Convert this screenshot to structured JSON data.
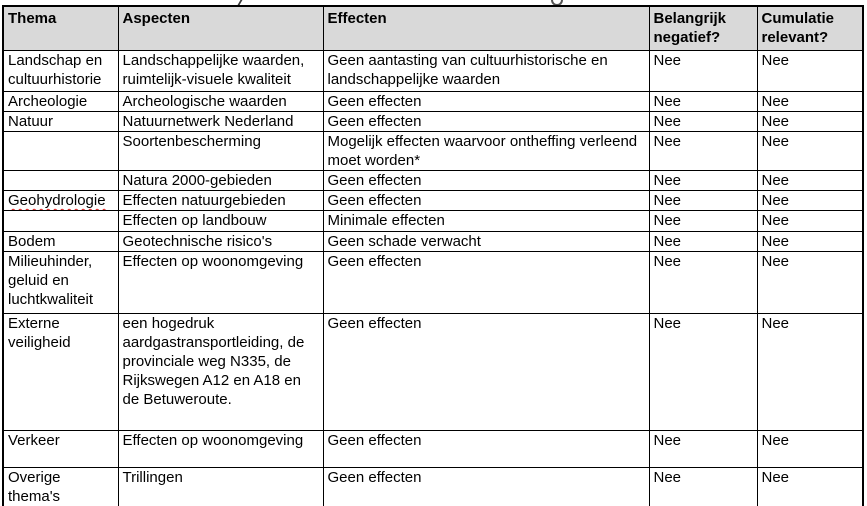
{
  "colors": {
    "page_background": "#ffffff",
    "header_background": "#d9d9d9",
    "border": "#000000",
    "text": "#000000",
    "spellcheck_underline": "#dd2222"
  },
  "table": {
    "header": {
      "thema": "Thema",
      "aspecten": "Aspecten",
      "effecten": "Effecten",
      "belangrijk": "Belangrijk negatief?",
      "cumulatie": "Cumulatie relevant?"
    },
    "rows": [
      {
        "thema": "Landschap en cultuurhistorie",
        "aspecten": "Landschappelijke waarden, ruimtelijk-visuele kwaliteit",
        "effecten": "Geen aantasting van cultuurhistorische en landschappelijke waarden",
        "belangrijk": "Nee",
        "cumulatie": "Nee"
      },
      {
        "thema": "Archeologie",
        "aspecten": "Archeologische waarden",
        "effecten": "Geen effecten",
        "belangrijk": "Nee",
        "cumulatie": "Nee"
      },
      {
        "thema": "Natuur",
        "aspecten": "Natuurnetwerk Nederland",
        "effecten": "Geen effecten",
        "belangrijk": "Nee",
        "cumulatie": "Nee"
      },
      {
        "thema": "",
        "aspecten": "Soortenbescherming",
        "effecten": "Mogelijk effecten waarvoor ontheffing verleend moet worden*",
        "belangrijk": "Nee",
        "cumulatie": "Nee"
      },
      {
        "thema": "",
        "aspecten": "Natura 2000-gebieden",
        "effecten": "Geen effecten",
        "belangrijk": "Nee",
        "cumulatie": "Nee"
      },
      {
        "thema": "Geohydrologie",
        "spellcheck_underline": true,
        "aspecten": "Effecten natuurgebieden",
        "effecten": "Geen effecten",
        "belangrijk": "Nee",
        "cumulatie": "Nee"
      },
      {
        "thema": "",
        "aspecten": "Effecten op landbouw",
        "effecten": "Minimale effecten",
        "belangrijk": "Nee",
        "cumulatie": "Nee"
      },
      {
        "thema": "Bodem",
        "aspecten": "Geotechnische risico's",
        "effecten": "Geen schade verwacht",
        "belangrijk": "Nee",
        "cumulatie": "Nee"
      },
      {
        "thema": "Milieuhinder, geluid en luchtkwaliteit",
        "aspecten": "Effecten op woonomgeving",
        "effecten": "Geen effecten",
        "belangrijk": "Nee",
        "cumulatie": "Nee"
      },
      {
        "thema": "Externe veiligheid",
        "aspecten": "een hogedruk aardgastransportleiding, de provinciale weg N335, de Rijkswegen A12 en A18 en de Betuweroute.",
        "effecten": "Geen effecten",
        "belangrijk": "Nee",
        "cumulatie": "Nee"
      },
      {
        "thema": "Verkeer",
        "aspecten": "Effecten op woonomgeving",
        "effecten": "Geen effecten",
        "belangrijk": "Nee",
        "cumulatie": "Nee"
      },
      {
        "thema": "Overige thema's",
        "aspecten": "Trillingen",
        "effecten": "Geen effecten",
        "belangrijk": "Nee",
        "cumulatie": "Nee"
      }
    ]
  }
}
